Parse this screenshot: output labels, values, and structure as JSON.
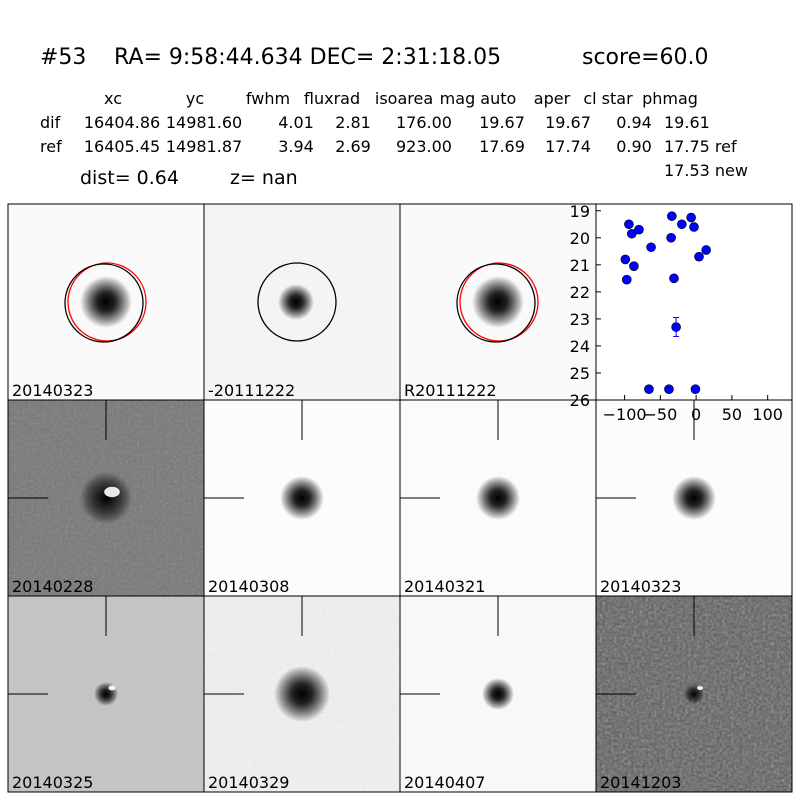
{
  "header": {
    "id": "#53",
    "coords": "RA= 9:58:44.634 DEC= 2:31:18.05",
    "score": "score=60.0"
  },
  "table": {
    "columns": [
      "xc",
      "yc",
      "fwhm",
      "fluxrad",
      "isoarea",
      "mag auto",
      "aper",
      "cl star",
      "phmag"
    ],
    "rows": [
      [
        "dif",
        "16404.86",
        "14981.60",
        "4.01",
        "2.81",
        "176.00",
        "19.67",
        "19.67",
        "0.94",
        "19.61"
      ],
      [
        "ref",
        "16405.45",
        "14981.87",
        "3.94",
        "2.69",
        "923.00",
        "17.69",
        "17.74",
        "0.90",
        "17.75 ref"
      ]
    ],
    "extra": "17.53 new",
    "dist": "dist=  0.64",
    "z": "z=   nan"
  },
  "panels": [
    {
      "label": "20140323"
    },
    {
      "label": "-20111222"
    },
    {
      "label": "R20111222"
    },
    {
      "label": "20140228"
    },
    {
      "label": "20140308"
    },
    {
      "label": "20140321"
    },
    {
      "label": "20140323",
      "label_color": "#ff0000"
    },
    {
      "label": "20140325"
    },
    {
      "label": "20140329"
    },
    {
      "label": "20140407"
    },
    {
      "label": "20141203"
    }
  ],
  "chart_data": {
    "type": "scatter",
    "x": [
      -94,
      -90,
      -80,
      -34,
      -7,
      -20,
      -3,
      -35,
      -63,
      -99,
      -87,
      14,
      4,
      -97,
      -31,
      -28,
      -66,
      -38,
      -1
    ],
    "series": [
      {
        "color": "#0000ff",
        "values": [
          19.5,
          19.85,
          19.7,
          19.2,
          19.25,
          19.5,
          19.6,
          20.0,
          20.35,
          20.8,
          21.05,
          20.45,
          20.7,
          21.55,
          21.5,
          23.3,
          25.6,
          25.6,
          25.6
        ],
        "errors": [
          null,
          null,
          null,
          null,
          null,
          null,
          null,
          null,
          null,
          null,
          null,
          null,
          null,
          null,
          null,
          0.35,
          null,
          null,
          null
        ]
      }
    ],
    "xlim": [
      -140,
      134
    ],
    "ylim": [
      26,
      18.75
    ],
    "xticks": [
      {
        "value": -100,
        "label": "−100"
      },
      {
        "value": -50,
        "label": "−50"
      },
      0,
      50,
      100
    ],
    "yticks": [
      19,
      20,
      21,
      22,
      23,
      24,
      25,
      26
    ]
  }
}
